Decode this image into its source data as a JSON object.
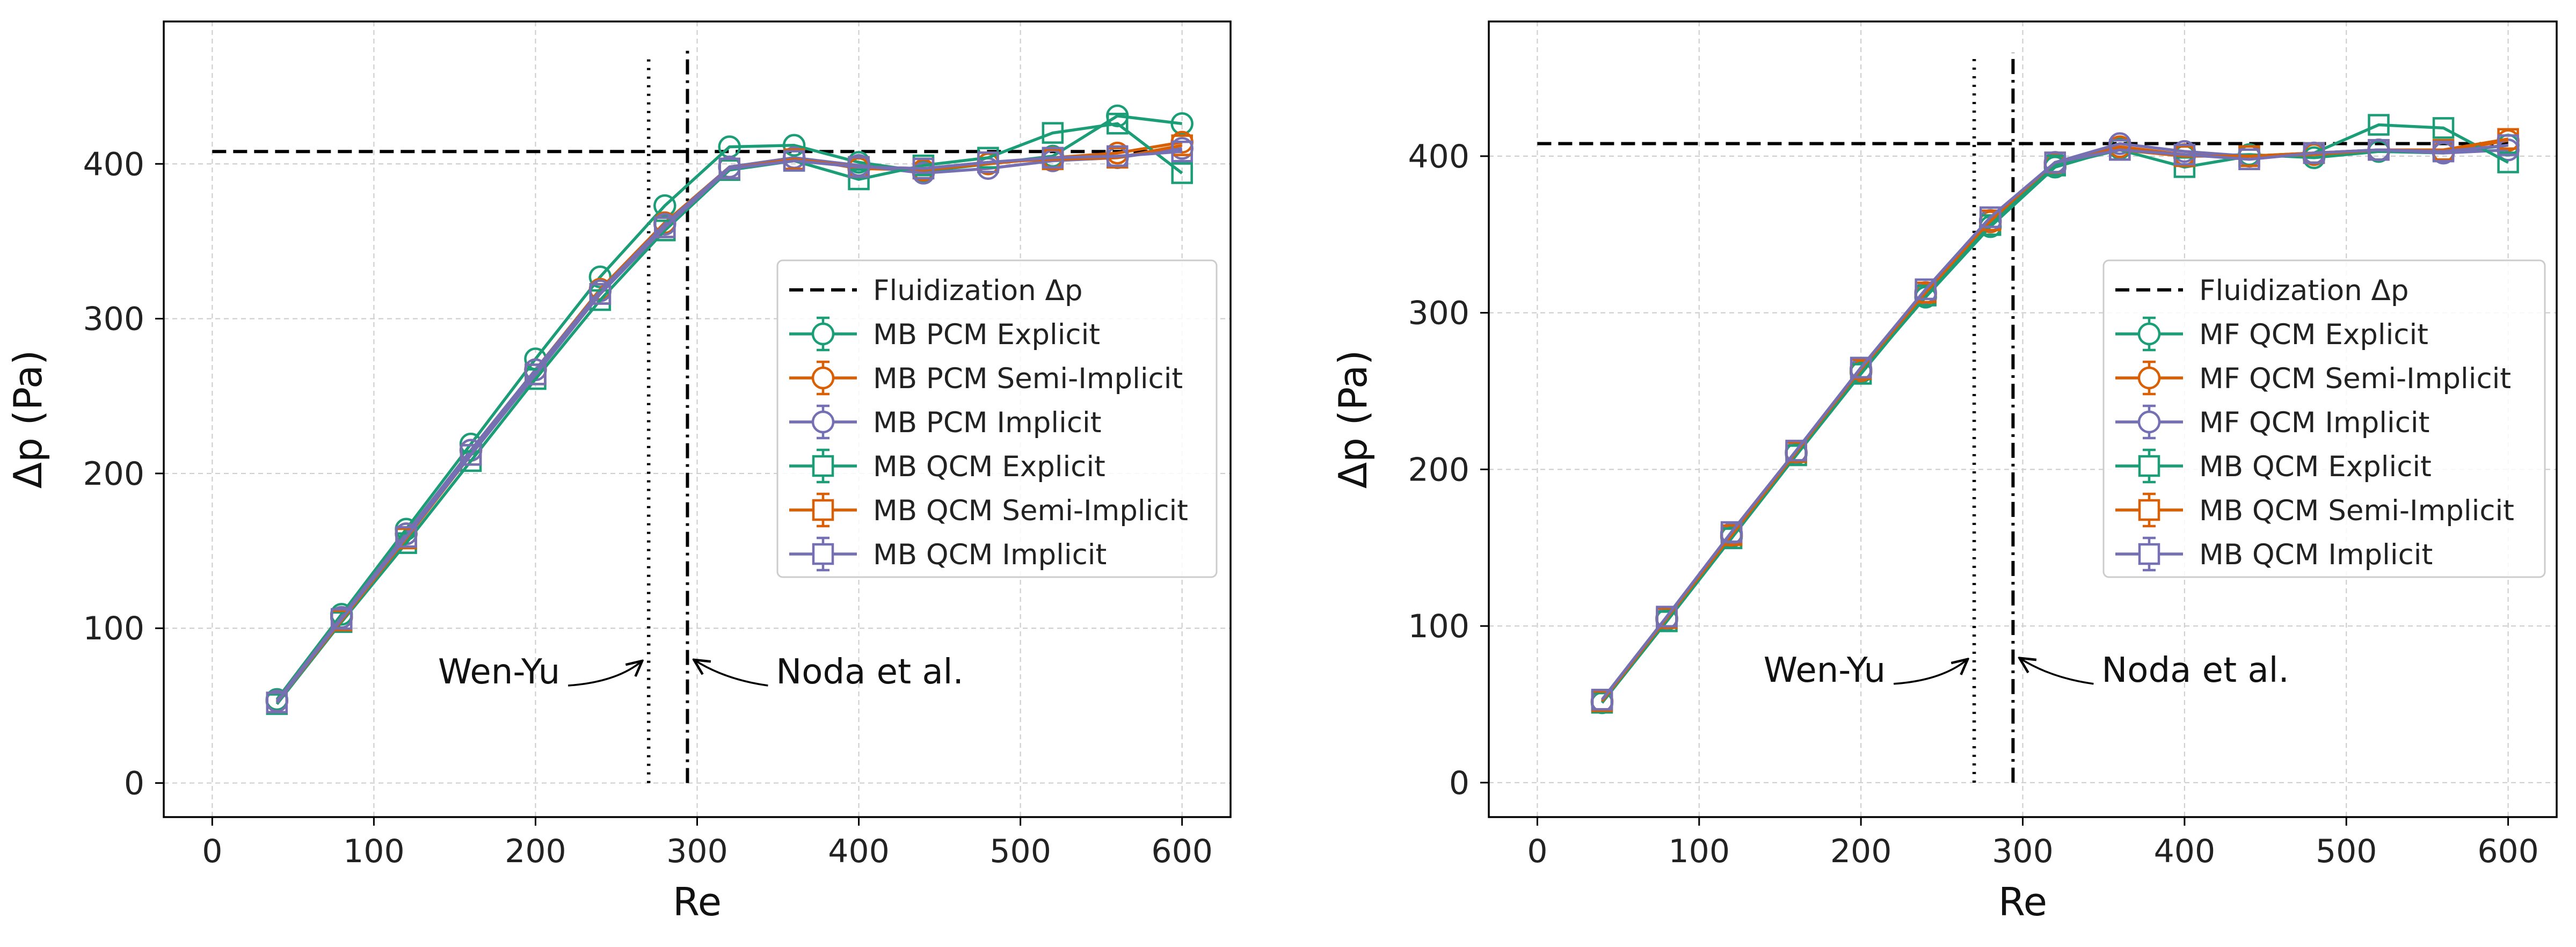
{
  "chart_data": [
    {
      "type": "line",
      "panel": "left",
      "title": "",
      "xlabel": "Re",
      "ylabel": "Δp (Pa)",
      "xlim": [
        -30,
        630
      ],
      "ylim": [
        -22,
        492
      ],
      "xticks": [
        0,
        100,
        200,
        300,
        400,
        500,
        600
      ],
      "yticks": [
        0,
        100,
        200,
        300,
        400
      ],
      "grid": true,
      "legend_position": "center-right",
      "x": [
        40,
        80,
        120,
        160,
        200,
        240,
        280,
        320,
        360,
        400,
        440,
        480,
        520,
        560,
        600
      ],
      "reference_lines": [
        {
          "name": "Fluidization Δp",
          "style": "dashed",
          "orientation": "horizontal",
          "y": 408,
          "x_from": 0,
          "x_to": 600
        },
        {
          "name": "Wen-Yu",
          "style": "dotted",
          "orientation": "vertical",
          "x": 270,
          "y_from": 0,
          "y_to": 470
        },
        {
          "name": "Noda et al.",
          "style": "dashdot",
          "orientation": "vertical",
          "x": 294,
          "y_from": 0,
          "y_to": 474
        }
      ],
      "annotations": [
        {
          "text": "Wen-Yu",
          "side": "left",
          "points_to": "Wen-Yu"
        },
        {
          "text": "Noda et al.",
          "side": "right",
          "points_to": "Noda et al."
        }
      ],
      "series": [
        {
          "name": "MB PCM Explicit",
          "color": "#1b9e77",
          "marker": "circle",
          "values": [
            54,
            109,
            164,
            219,
            274,
            327,
            373,
            411,
            412,
            401,
            395,
            400,
            405,
            431,
            426
          ]
        },
        {
          "name": "MB PCM Semi-Implicit",
          "color": "#d95f02",
          "marker": "circle",
          "values": [
            53,
            107,
            161,
            215,
            267,
            319,
            362,
            398,
            404,
            397,
            396,
            400,
            404,
            407,
            414
          ]
        },
        {
          "name": "MB PCM Implicit",
          "color": "#7570b3",
          "marker": "circle",
          "values": [
            53,
            107,
            161,
            215,
            267,
            318,
            361,
            398,
            404,
            399,
            394,
            397,
            402,
            404,
            410
          ]
        },
        {
          "name": "MB QCM Explicit",
          "color": "#1b9e77",
          "marker": "square",
          "values": [
            51,
            104,
            155,
            208,
            261,
            312,
            357,
            396,
            402,
            390,
            399,
            404,
            420,
            426,
            394
          ]
        },
        {
          "name": "MB QCM Semi-Implicit",
          "color": "#d95f02",
          "marker": "square",
          "values": [
            52,
            105,
            158,
            212,
            264,
            316,
            359,
            397,
            403,
            398,
            397,
            401,
            403,
            404,
            412
          ]
        },
        {
          "name": "MB QCM Implicit",
          "color": "#7570b3",
          "marker": "square",
          "values": [
            52,
            106,
            159,
            212,
            264,
            316,
            359,
            397,
            402,
            398,
            397,
            401,
            404,
            405,
            408
          ]
        }
      ]
    },
    {
      "type": "line",
      "panel": "right",
      "title": "",
      "xlabel": "Re",
      "ylabel": "Δp (Pa)",
      "xlim": [
        -30,
        630
      ],
      "ylim": [
        -22,
        486
      ],
      "xticks": [
        0,
        100,
        200,
        300,
        400,
        500,
        600
      ],
      "yticks": [
        0,
        100,
        200,
        300,
        400
      ],
      "grid": true,
      "legend_position": "center-right",
      "x": [
        40,
        80,
        120,
        160,
        200,
        240,
        280,
        320,
        360,
        400,
        440,
        480,
        520,
        560,
        600
      ],
      "reference_lines": [
        {
          "name": "Fluidization Δp",
          "style": "dashed",
          "orientation": "horizontal",
          "y": 408,
          "x_from": 0,
          "x_to": 600
        },
        {
          "name": "Wen-Yu",
          "style": "dotted",
          "orientation": "vertical",
          "x": 270,
          "y_from": 0,
          "y_to": 462
        },
        {
          "name": "Noda et al.",
          "style": "dashdot",
          "orientation": "vertical",
          "x": 294,
          "y_from": 0,
          "y_to": 466
        }
      ],
      "annotations": [
        {
          "text": "Wen-Yu",
          "side": "left",
          "points_to": "Wen-Yu"
        },
        {
          "text": "Noda et al.",
          "side": "right",
          "points_to": "Noda et al."
        }
      ],
      "series": [
        {
          "name": "MF QCM Explicit",
          "color": "#1b9e77",
          "marker": "circle",
          "values": [
            51,
            104,
            157,
            210,
            262,
            310,
            355,
            393,
            405,
            400,
            401,
            399,
            403,
            402,
            407
          ]
        },
        {
          "name": "MF QCM Semi-Implicit",
          "color": "#d95f02",
          "marker": "circle",
          "values": [
            52,
            105,
            158,
            211,
            263,
            312,
            358,
            395,
            406,
            401,
            400,
            401,
            404,
            403,
            410
          ]
        },
        {
          "name": "MF QCM Implicit",
          "color": "#7570b3",
          "marker": "circle",
          "values": [
            52,
            105,
            159,
            211,
            264,
            313,
            359,
            396,
            408,
            403,
            400,
            402,
            404,
            402,
            404
          ]
        },
        {
          "name": "MB QCM Explicit",
          "color": "#1b9e77",
          "marker": "square",
          "values": [
            51,
            103,
            156,
            209,
            261,
            311,
            356,
            394,
            404,
            393,
            400,
            402,
            420,
            418,
            396
          ]
        },
        {
          "name": "MB QCM Semi-Implicit",
          "color": "#d95f02",
          "marker": "square",
          "values": [
            52,
            105,
            158,
            211,
            264,
            313,
            359,
            396,
            404,
            400,
            400,
            402,
            404,
            404,
            411
          ]
        },
        {
          "name": "MB QCM Implicit",
          "color": "#7570b3",
          "marker": "square",
          "values": [
            53,
            106,
            160,
            212,
            265,
            315,
            361,
            396,
            404,
            401,
            398,
            402,
            404,
            403,
            407
          ]
        }
      ]
    }
  ]
}
